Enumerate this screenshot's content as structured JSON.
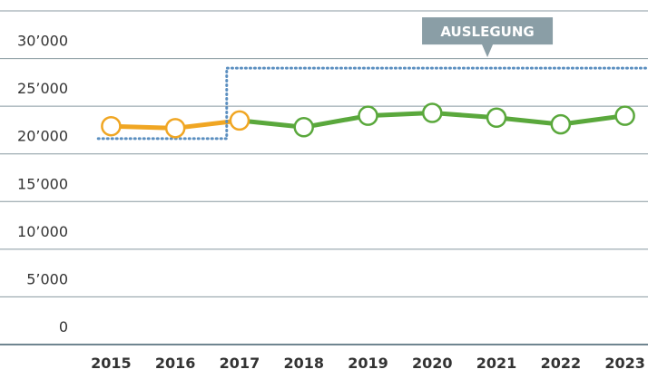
{
  "chart_data": {
    "type": "line",
    "categories": [
      "2015",
      "2016",
      "2017",
      "2018",
      "2019",
      "2020",
      "2021",
      "2022",
      "2023"
    ],
    "series": [
      {
        "color": "#f0a623",
        "values": [
          22900,
          22700,
          23500,
          null,
          null,
          null,
          null,
          null,
          null
        ]
      },
      {
        "color": "#5aa83c",
        "values": [
          null,
          null,
          23500,
          22800,
          24000,
          24300,
          23800,
          23100,
          24000
        ]
      },
      {
        "name": "AUSLEGUNG",
        "color": "#5b8fc0",
        "style": "dotted",
        "values": [
          21600,
          21600,
          29000,
          29000,
          29000,
          29000,
          29000,
          29000,
          29000
        ]
      }
    ],
    "ylim": [
      0,
      35000
    ],
    "yticks": [
      0,
      {
        "value": 5000,
        "label": "5’000"
      },
      {
        "value": 10000,
        "label": "10’000"
      },
      {
        "value": 15000,
        "label": "15’000"
      },
      {
        "value": 20000,
        "label": "20’000"
      },
      {
        "value": 25000,
        "label": "25’000"
      },
      {
        "value": 30000,
        "label": "30’000"
      }
    ],
    "grid": true
  }
}
